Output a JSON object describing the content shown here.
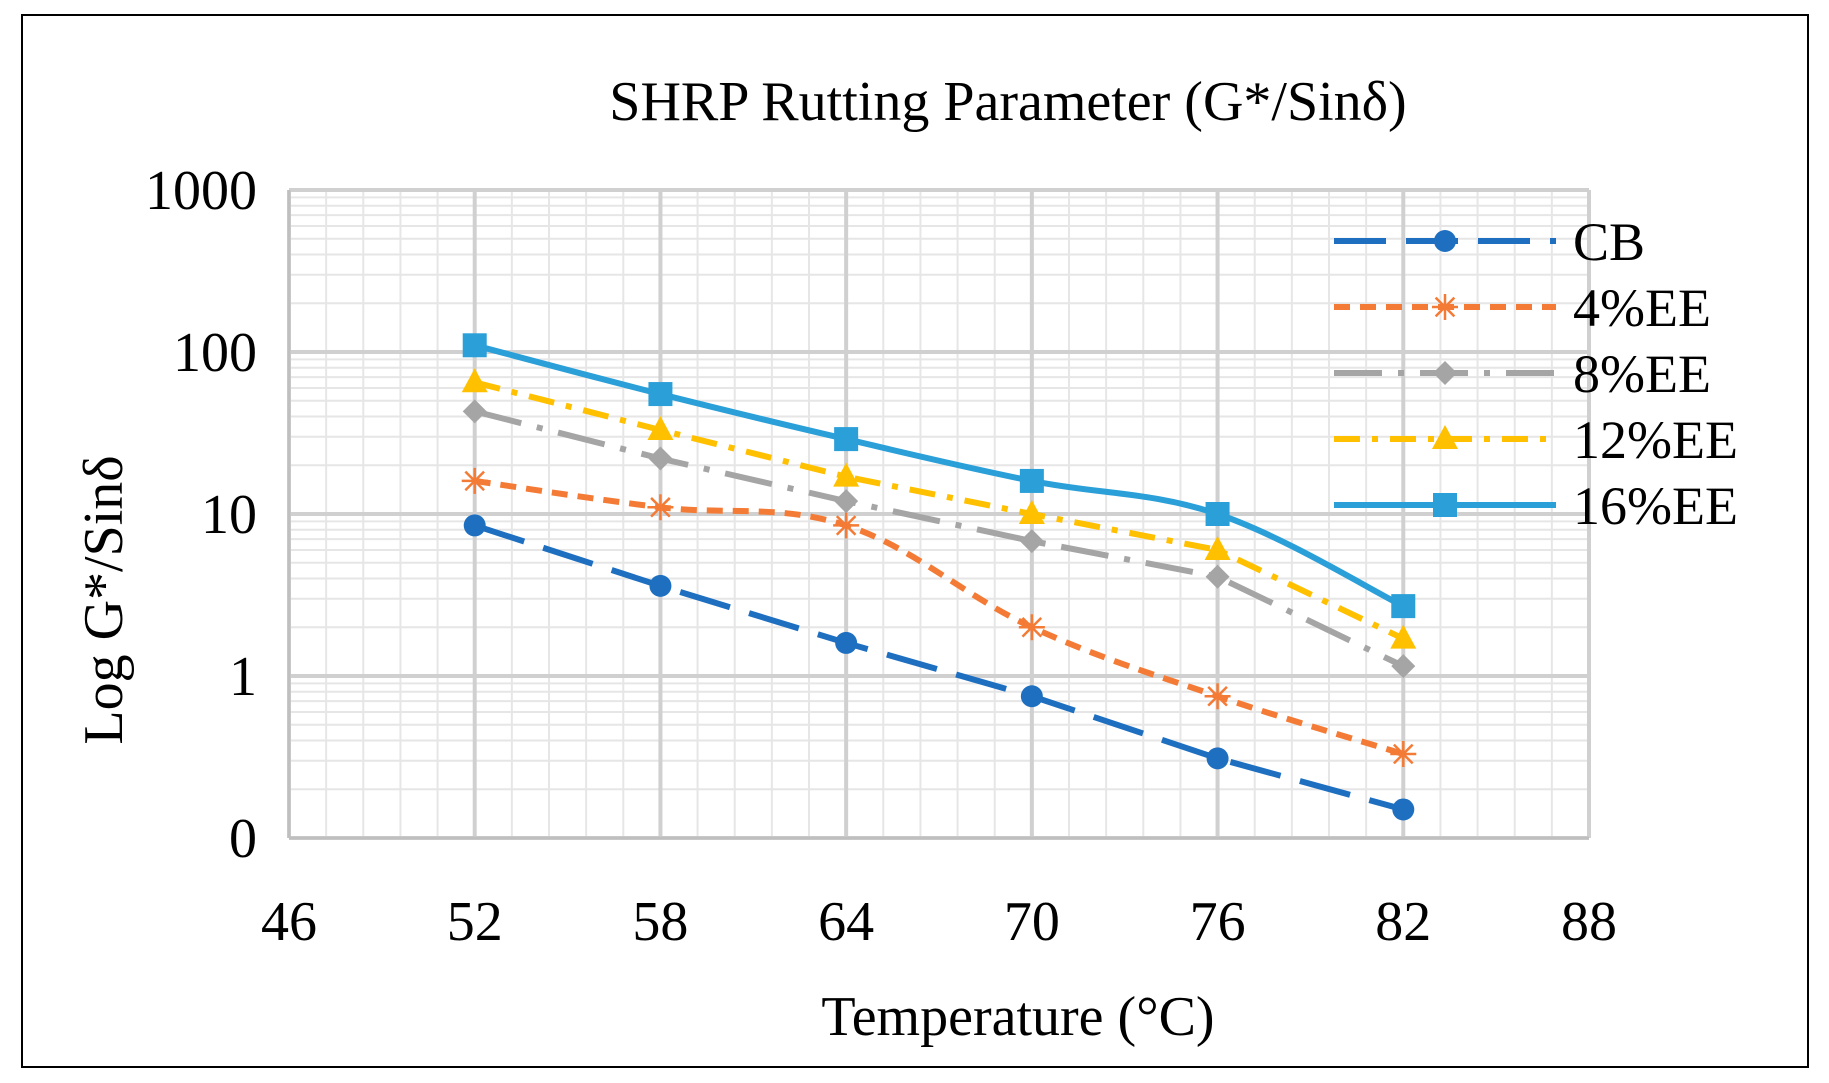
{
  "chart_data": {
    "type": "line",
    "title": "SHRP Rutting Parameter (G*/Sinδ)",
    "xlabel": "Temperature (°C)",
    "ylabel": "Log G*/Sinδ",
    "x_scale": "linear",
    "y_scale": "log",
    "xlim": [
      46,
      88
    ],
    "ylim": [
      0.1,
      1000
    ],
    "x_ticks": [
      46,
      52,
      58,
      64,
      70,
      76,
      82,
      88
    ],
    "x_tick_labels": [
      "46",
      "52",
      "58",
      "64",
      "70",
      "76",
      "82",
      "88"
    ],
    "y_ticks": [
      0.1,
      1,
      10,
      100,
      1000
    ],
    "y_tick_labels": [
      "0",
      "1",
      "10",
      "100",
      "1000"
    ],
    "grid": true,
    "legend_position": "top-right",
    "x": [
      52,
      58,
      64,
      70,
      76,
      82
    ],
    "series": [
      {
        "name": "CB",
        "color": "#1f6fc1",
        "marker": "circle",
        "line_style": "long-dash",
        "smooth": false,
        "values": [
          8.5,
          3.6,
          1.6,
          0.75,
          0.31,
          0.15
        ]
      },
      {
        "name": "4%EE",
        "color": "#f47b35",
        "marker": "star",
        "line_style": "short-dash",
        "smooth": true,
        "values": [
          16,
          11,
          8.5,
          2.0,
          0.75,
          0.33
        ]
      },
      {
        "name": "8%EE",
        "color": "#a5a5a5",
        "marker": "diamond",
        "line_style": "long-dash-dot",
        "smooth": false,
        "values": [
          43,
          22,
          12,
          6.8,
          4.1,
          1.15
        ]
      },
      {
        "name": "12%EE",
        "color": "#ffc000",
        "marker": "triangle",
        "line_style": "dash-dot",
        "smooth": false,
        "values": [
          65,
          33,
          17,
          10,
          6.0,
          1.7
        ]
      },
      {
        "name": "16%EE",
        "color": "#2a9fd8",
        "marker": "square",
        "line_style": "solid",
        "smooth": true,
        "values": [
          110,
          55,
          29,
          16,
          10,
          2.7
        ]
      }
    ]
  }
}
